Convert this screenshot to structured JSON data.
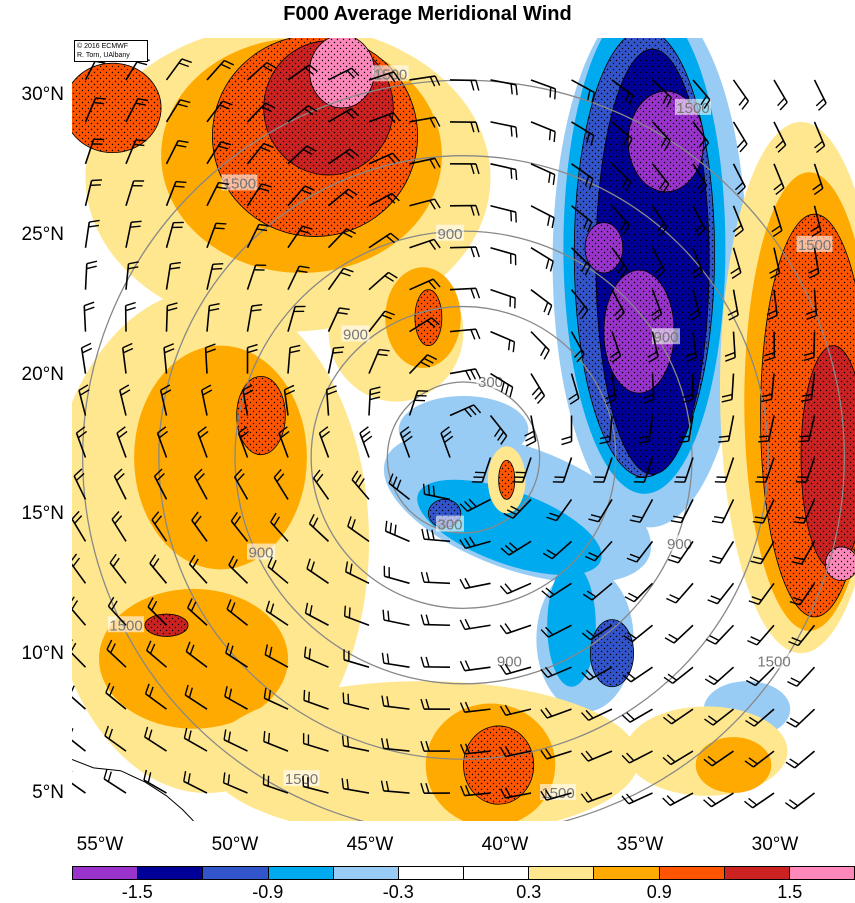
{
  "title": "F000 Average Meridional Wind",
  "credit": {
    "line1": "© 2016 ECMWF",
    "line2": "R. Torn, UAlbany"
  },
  "axes": {
    "lon_range": [
      -57,
      -28
    ],
    "lat_range": [
      4,
      32
    ],
    "lat_ticks": [
      {
        "value": 30,
        "label": "30°N"
      },
      {
        "value": 25,
        "label": "25°N"
      },
      {
        "value": 20,
        "label": "20°N"
      },
      {
        "value": 15,
        "label": "15°N"
      },
      {
        "value": 10,
        "label": "10°N"
      },
      {
        "value": 5,
        "label": "5°N"
      }
    ],
    "lon_ticks": [
      {
        "value": -55,
        "label": "55°W"
      },
      {
        "value": -50,
        "label": "50°W"
      },
      {
        "value": -45,
        "label": "45°W"
      },
      {
        "value": -40,
        "label": "40°W"
      },
      {
        "value": -35,
        "label": "35°W"
      },
      {
        "value": -30,
        "label": "30°W"
      }
    ]
  },
  "range_rings": {
    "center": {
      "lon": -42.5,
      "lat": 17.0
    },
    "radii_km": [
      300,
      600,
      900,
      1200,
      1500
    ],
    "labels": [
      {
        "text": "300",
        "lon": -41.5,
        "lat": 19.7
      },
      {
        "text": "300",
        "lon": -43.0,
        "lat": 14.6
      },
      {
        "text": "900",
        "lon": -46.5,
        "lat": 21.4
      },
      {
        "text": "900",
        "lon": -43.0,
        "lat": 25.0
      },
      {
        "text": "900",
        "lon": -35.0,
        "lat": 21.3
      },
      {
        "text": "900",
        "lon": -50.0,
        "lat": 13.6
      },
      {
        "text": "900",
        "lon": -40.8,
        "lat": 9.7
      },
      {
        "text": "900",
        "lon": -34.5,
        "lat": 13.9
      },
      {
        "text": "1500",
        "lon": -45.2,
        "lat": 30.7
      },
      {
        "text": "1500",
        "lon": -34.0,
        "lat": 29.5
      },
      {
        "text": "1500",
        "lon": -50.8,
        "lat": 26.8
      },
      {
        "text": "1500",
        "lon": -29.5,
        "lat": 24.6
      },
      {
        "text": "1500",
        "lon": -55.0,
        "lat": 11.0
      },
      {
        "text": "1500",
        "lon": -48.5,
        "lat": 5.5
      },
      {
        "text": "1500",
        "lon": -39.0,
        "lat": 5.0
      },
      {
        "text": "1500",
        "lon": -31.0,
        "lat": 9.7
      }
    ]
  },
  "colorbar": {
    "colors": [
      "#9933cc",
      "#000099",
      "#3355cc",
      "#00aaee",
      "#99ccf5",
      "#ffffff",
      "#ffffff",
      "#ffe78f",
      "#ffaa00",
      "#ff5500",
      "#cc2222",
      "#ff88bb"
    ],
    "labels": [
      {
        "text": "-1.5",
        "index": 2
      },
      {
        "text": "-0.9",
        "index": 4
      },
      {
        "text": "-0.3",
        "index": 6
      },
      {
        "text": "0.3",
        "index": 8
      },
      {
        "text": "0.9",
        "index": 10
      },
      {
        "text": "1.5",
        "index": 12
      }
    ]
  },
  "shading_fields": [
    {
      "name": "central-negative-tongue",
      "level": 1,
      "lon": -40.5,
      "lat": 15.2,
      "rx": 5.2,
      "ry": 2.2,
      "rot": 20
    },
    {
      "name": "central-negative-tongue",
      "level": 1,
      "lon": -42.5,
      "lat": 18.0,
      "rx": 2.4,
      "ry": 1.2,
      "rot": 0
    },
    {
      "name": "central-negative-tongue",
      "level": 1,
      "lon": -38.0,
      "lat": 10.5,
      "rx": 1.8,
      "ry": 2.6,
      "rot": 0
    },
    {
      "name": "central-negative-tongue",
      "level": 2,
      "lon": -40.8,
      "lat": 14.5,
      "rx": 3.6,
      "ry": 1.3,
      "rot": 20
    },
    {
      "name": "central-negative-tongue",
      "level": 2,
      "lon": -38.5,
      "lat": 11.0,
      "rx": 0.9,
      "ry": 2.2,
      "rot": 0
    },
    {
      "name": "central-negative-tongue",
      "level": 3,
      "lon": -37.0,
      "lat": 10.0,
      "rx": 0.8,
      "ry": 1.2,
      "rot": 0
    },
    {
      "name": "central-negative-tongue",
      "level": 3,
      "lon": -43.2,
      "lat": 15.0,
      "rx": 0.6,
      "ry": 0.5,
      "rot": 0
    },
    {
      "name": "east-negative-band",
      "level": 1,
      "lon": -35.6,
      "lat": 24.0,
      "rx": 3.6,
      "ry": 9.5,
      "rot": 0
    },
    {
      "name": "east-negative-band",
      "level": 1,
      "lon": -32.0,
      "lat": 8.0,
      "rx": 1.6,
      "ry": 1.0,
      "rot": 0
    },
    {
      "name": "east-negative-band",
      "level": 2,
      "lon": -35.8,
      "lat": 24.5,
      "rx": 3.0,
      "ry": 8.8,
      "rot": 0
    },
    {
      "name": "east-negative-band",
      "level": 3,
      "lon": -35.8,
      "lat": 24.3,
      "rx": 2.6,
      "ry": 8.0,
      "rot": 0
    },
    {
      "name": "east-negative-band",
      "level": 4,
      "lon": -35.5,
      "lat": 24.0,
      "rx": 2.1,
      "ry": 7.6,
      "rot": 0
    },
    {
      "name": "east-negative-band",
      "level": 5,
      "lon": -35.0,
      "lat": 28.3,
      "rx": 1.4,
      "ry": 1.8,
      "rot": 0
    },
    {
      "name": "east-negative-band",
      "level": 5,
      "lon": -36.0,
      "lat": 21.5,
      "rx": 1.3,
      "ry": 2.2,
      "rot": 0
    },
    {
      "name": "east-negative-band",
      "level": 5,
      "lon": -37.3,
      "lat": 24.5,
      "rx": 0.7,
      "ry": 0.9,
      "rot": 0
    },
    {
      "name": "northwest-positive",
      "level": 1,
      "lon": -49.0,
      "lat": 27.0,
      "rx": 7.5,
      "ry": 5.5,
      "rot": 0
    },
    {
      "name": "northwest-positive",
      "level": 2,
      "lon": -48.5,
      "lat": 27.8,
      "rx": 5.2,
      "ry": 4.2,
      "rot": 0
    },
    {
      "name": "northwest-positive",
      "level": 3,
      "lon": -48.0,
      "lat": 28.5,
      "rx": 3.8,
      "ry": 3.6,
      "rot": 0
    },
    {
      "name": "northwest-positive",
      "level": 4,
      "lon": -47.5,
      "lat": 29.5,
      "rx": 2.4,
      "ry": 2.4,
      "rot": 0
    },
    {
      "name": "northwest-positive",
      "level": 5,
      "lon": -47.0,
      "lat": 30.8,
      "rx": 1.2,
      "ry": 1.3,
      "rot": 0
    },
    {
      "name": "northwest-positive",
      "level": 3,
      "lon": -55.5,
      "lat": 29.5,
      "rx": 1.8,
      "ry": 1.6,
      "rot": 0
    },
    {
      "name": "west-positive",
      "level": 1,
      "lon": -52.0,
      "lat": 14.0,
      "rx": 6.0,
      "ry": 9.0,
      "rot": 0
    },
    {
      "name": "west-positive",
      "level": 2,
      "lon": -51.5,
      "lat": 17.0,
      "rx": 3.2,
      "ry": 4.0,
      "rot": 0
    },
    {
      "name": "west-positive",
      "level": 2,
      "lon": -52.5,
      "lat": 9.8,
      "rx": 3.5,
      "ry": 2.5,
      "rot": 0
    },
    {
      "name": "west-positive",
      "level": 3,
      "lon": -50.0,
      "lat": 18.5,
      "rx": 0.9,
      "ry": 1.4,
      "rot": 0
    },
    {
      "name": "west-positive",
      "level": 4,
      "lon": -53.5,
      "lat": 11.0,
      "rx": 0.8,
      "ry": 0.4,
      "rot": 0
    },
    {
      "name": "west-positive",
      "level": 1,
      "lon": -45.0,
      "lat": 21.5,
      "rx": 2.5,
      "ry": 2.5,
      "rot": 0
    },
    {
      "name": "west-positive",
      "level": 2,
      "lon": -44.0,
      "lat": 22.0,
      "rx": 1.4,
      "ry": 1.8,
      "rot": 0
    },
    {
      "name": "west-positive",
      "level": 3,
      "lon": -43.8,
      "lat": 22.0,
      "rx": 0.5,
      "ry": 1.0,
      "rot": 0
    },
    {
      "name": "south-positive",
      "level": 1,
      "lon": -44.0,
      "lat": 6.2,
      "rx": 8.0,
      "ry": 2.8,
      "rot": 0
    },
    {
      "name": "south-positive",
      "level": 2,
      "lon": -41.5,
      "lat": 6.0,
      "rx": 2.4,
      "ry": 2.2,
      "rot": 0
    },
    {
      "name": "south-positive",
      "level": 3,
      "lon": -41.2,
      "lat": 6.0,
      "rx": 1.3,
      "ry": 1.4,
      "rot": 0
    },
    {
      "name": "south-positive",
      "level": 1,
      "lon": -33.5,
      "lat": 6.5,
      "rx": 3.0,
      "ry": 1.6,
      "rot": 0
    },
    {
      "name": "south-positive",
      "level": 2,
      "lon": -32.5,
      "lat": 6.0,
      "rx": 1.4,
      "ry": 1.0,
      "rot": 0
    },
    {
      "name": "central-positive-spot",
      "level": 1,
      "lon": -40.9,
      "lat": 16.2,
      "rx": 0.7,
      "ry": 1.2,
      "rot": 0
    },
    {
      "name": "central-positive-spot",
      "level": 3,
      "lon": -40.9,
      "lat": 16.2,
      "rx": 0.3,
      "ry": 0.7,
      "rot": 0
    },
    {
      "name": "east-positive",
      "level": 1,
      "lon": -30.0,
      "lat": 19.5,
      "rx": 3.0,
      "ry": 9.5,
      "rot": 0
    },
    {
      "name": "east-positive",
      "level": 2,
      "lon": -29.7,
      "lat": 19.0,
      "rx": 2.4,
      "ry": 8.2,
      "rot": 0
    },
    {
      "name": "east-positive",
      "level": 3,
      "lon": -29.5,
      "lat": 18.5,
      "rx": 2.0,
      "ry": 7.2,
      "rot": 0
    },
    {
      "name": "east-positive",
      "level": 4,
      "lon": -28.8,
      "lat": 17.0,
      "rx": 1.2,
      "ry": 4.0,
      "rot": 0
    },
    {
      "name": "east-positive",
      "level": 5,
      "lon": -28.5,
      "lat": 13.2,
      "rx": 0.6,
      "ry": 0.6,
      "rot": 0
    }
  ],
  "map_features": {
    "coastline": [
      [
        -57,
        6.2
      ],
      [
        -56.2,
        5.9
      ],
      [
        -55.2,
        5.8
      ],
      [
        -54.3,
        5.4
      ],
      [
        -53.5,
        4.9
      ],
      [
        -52.9,
        4.4
      ],
      [
        -52.5,
        4.0
      ]
    ]
  }
}
